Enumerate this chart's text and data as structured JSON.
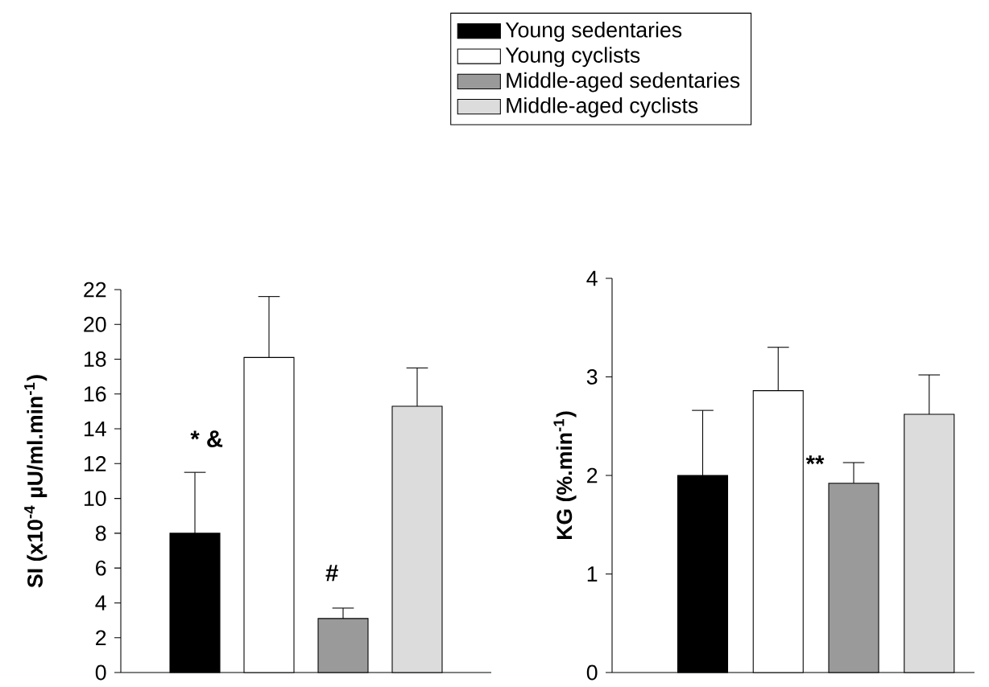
{
  "chart_data": [
    {
      "type": "bar",
      "ylabel": "SI (x10$^{-4}$ µU/ml.min$^{-1}$)",
      "categories": [
        null,
        null,
        null,
        null
      ],
      "legend": "top",
      "series": [
        {
          "name": "Young sedentaries",
          "color": "#000000",
          "values": [
            8.0,
            null,
            null,
            null
          ],
          "errors": [
            [
              8.0,
              11.5
            ],
            null,
            null,
            null
          ]
        },
        {
          "name": "Young cyclists",
          "color": "#ffffff",
          "values": [
            null,
            18.1,
            null,
            null
          ],
          "errors": [
            null,
            [
              18.1,
              21.6
            ],
            null,
            null
          ]
        },
        {
          "name": "Middle-aged sedentaries",
          "color": "#9a9a9a",
          "values": [
            null,
            null,
            3.1,
            null
          ],
          "errors": [
            null,
            null,
            [
              3.1,
              3.7
            ],
            null
          ]
        },
        {
          "name": "Middle-aged cyclists",
          "color": "#dcdcdc",
          "values": [
            null,
            null,
            null,
            15.3
          ],
          "errors": [
            null,
            null,
            null,
            [
              15.3,
              17.5
            ]
          ]
        }
      ],
      "ylim": [
        0,
        22
      ],
      "yticks": [
        0,
        2,
        4,
        6,
        8,
        10,
        12,
        14,
        16,
        18,
        20,
        22
      ],
      "annotations": [
        "* &",
        "#"
      ]
    },
    {
      "type": "bar",
      "ylabel": "KG (%.min$^{-1}$)",
      "categories": [
        null,
        null,
        null,
        null
      ],
      "series": [
        {
          "color": "#000000",
          "values": [
            2.0,
            null,
            null,
            null
          ],
          "errors": [
            [
              2.0,
              2.66
            ],
            null,
            null,
            null
          ]
        },
        {
          "color": "#ffffff",
          "values": [
            null,
            2.86,
            null,
            null
          ],
          "errors": [
            null,
            [
              2.86,
              3.3
            ],
            null,
            null
          ]
        },
        {
          "color": "#9a9a9a",
          "values": [
            null,
            null,
            1.92,
            null
          ],
          "errors": [
            null,
            null,
            [
              1.92,
              2.13
            ],
            null
          ]
        },
        {
          "color": "#dcdcdc",
          "values": [
            null,
            null,
            null,
            2.62
          ],
          "errors": [
            null,
            null,
            null,
            [
              2.62,
              3.02
            ]
          ]
        }
      ],
      "ylim": [
        0,
        4
      ],
      "yticks": [
        0,
        1,
        2,
        3,
        4
      ],
      "annotations": [
        "**"
      ]
    }
  ]
}
